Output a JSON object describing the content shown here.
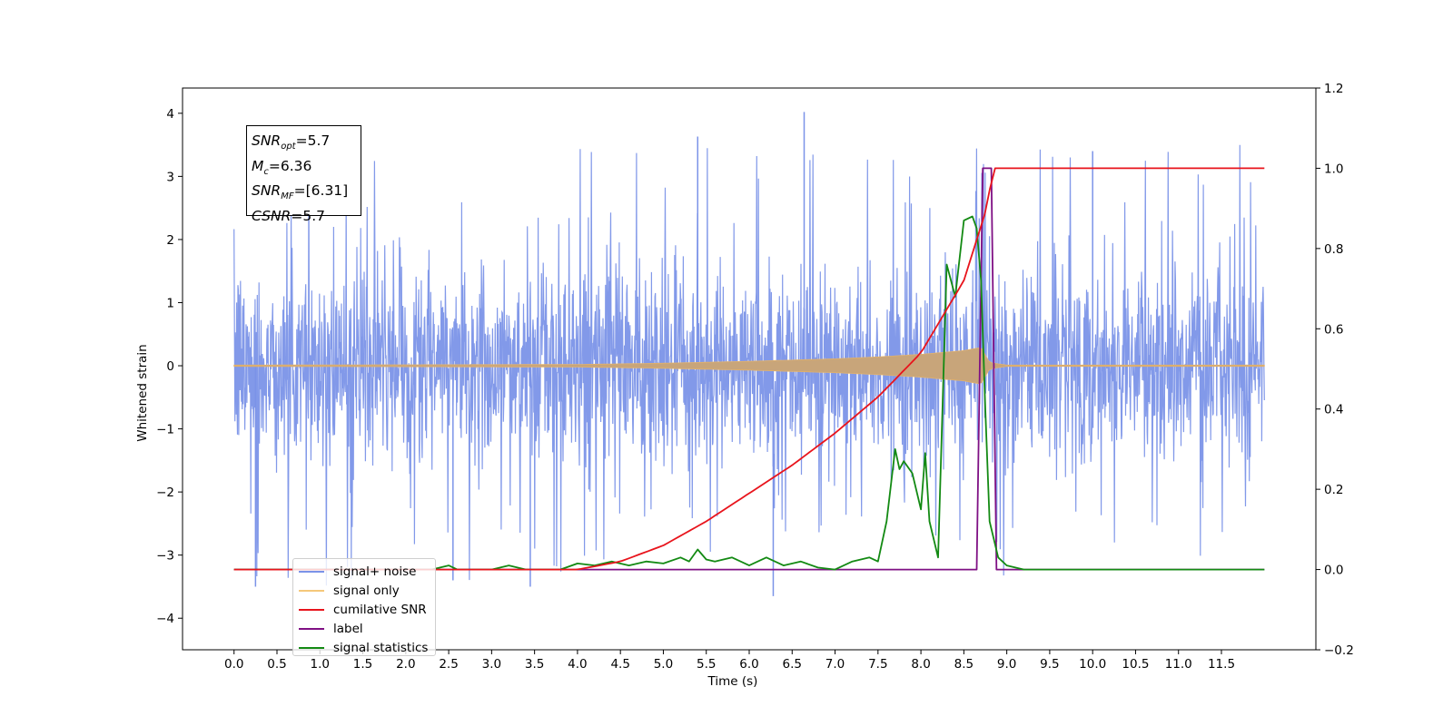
{
  "chart_data": {
    "type": "line",
    "xlabel": "Time (s)",
    "ylabel": "Whitened strain",
    "xlim": [
      -0.6,
      12.6
    ],
    "ylim": [
      -4.5,
      4.4
    ],
    "y2lim": [
      -0.2,
      1.2
    ],
    "xticks": [
      "0.0",
      "0.5",
      "1.0",
      "1.5",
      "2.0",
      "2.5",
      "3.0",
      "3.5",
      "4.0",
      "4.5",
      "5.0",
      "5.5",
      "6.0",
      "6.5",
      "7.0",
      "7.5",
      "8.0",
      "8.5",
      "9.0",
      "9.5",
      "10.0",
      "10.5",
      "11.0",
      "11.5"
    ],
    "yticks": [
      "4",
      "3",
      "2",
      "1",
      "0",
      "−1",
      "−2",
      "−3",
      "−4"
    ],
    "y2ticks": [
      "1.2",
      "1.0",
      "0.8",
      "0.6",
      "0.4",
      "0.2",
      "0.0",
      "−0.2"
    ],
    "legend_position": "lower-left",
    "annotation": {
      "snr_opt": "5.7",
      "mc": "6.36",
      "snr_mf": "[6.31]",
      "csnr": "5.7"
    },
    "series": [
      {
        "name": "signal+ noise",
        "color": "#7b93e8",
        "axis": "left",
        "description_values": {
          "x_range": [
            0.0,
            12.0
          ],
          "typical_band": [
            -2.0,
            2.0
          ],
          "spike_max": 4.02,
          "spike_min": -3.65
        }
      },
      {
        "name": "signal only",
        "color": "#c8a57a",
        "axis": "left",
        "envelope": {
          "x": [
            0.0,
            4.0,
            5.0,
            6.0,
            7.0,
            7.5,
            8.0,
            8.5,
            8.7,
            8.8,
            9.0,
            12.0
          ],
          "amp": [
            0.01,
            0.02,
            0.04,
            0.07,
            0.11,
            0.14,
            0.18,
            0.24,
            0.29,
            0.05,
            0.01,
            0.01
          ]
        }
      },
      {
        "name": "cumilative SNR",
        "color": "#e8141c",
        "axis": "right",
        "x": [
          0.0,
          4.0,
          4.5,
          5.0,
          5.5,
          6.0,
          6.5,
          7.0,
          7.5,
          8.0,
          8.5,
          8.75,
          8.85,
          9.0,
          12.0
        ],
        "y": [
          0.0,
          0.0,
          0.02,
          0.06,
          0.12,
          0.19,
          0.26,
          0.34,
          0.43,
          0.54,
          0.72,
          0.89,
          1.0,
          1.0,
          1.0
        ]
      },
      {
        "name": "label",
        "color": "#7f1084",
        "axis": "right",
        "x": [
          0.0,
          8.65,
          8.72,
          8.82,
          8.88,
          12.0
        ],
        "y": [
          0.0,
          0.0,
          1.0,
          1.0,
          0.0,
          0.0
        ]
      },
      {
        "name": "signal statistics",
        "color": "#138a13",
        "axis": "right",
        "x": [
          0.0,
          2.3,
          2.5,
          2.6,
          2.8,
          3.0,
          3.2,
          3.4,
          3.6,
          3.8,
          4.0,
          4.2,
          4.4,
          4.6,
          4.8,
          5.0,
          5.2,
          5.3,
          5.4,
          5.5,
          5.6,
          5.8,
          6.0,
          6.2,
          6.4,
          6.6,
          6.8,
          7.0,
          7.2,
          7.4,
          7.5,
          7.6,
          7.7,
          7.75,
          7.8,
          7.9,
          8.0,
          8.05,
          8.1,
          8.2,
          8.3,
          8.4,
          8.5,
          8.6,
          8.65,
          8.7,
          8.75,
          8.8,
          8.9,
          9.0,
          9.2,
          12.0
        ],
        "y": [
          0.0,
          0.0,
          0.01,
          0.0,
          0.0,
          0.0,
          0.01,
          0.0,
          0.0,
          0.0,
          0.015,
          0.01,
          0.02,
          0.01,
          0.02,
          0.015,
          0.03,
          0.02,
          0.05,
          0.025,
          0.02,
          0.03,
          0.01,
          0.03,
          0.01,
          0.02,
          0.005,
          0.0,
          0.02,
          0.03,
          0.02,
          0.12,
          0.3,
          0.25,
          0.27,
          0.24,
          0.15,
          0.29,
          0.12,
          0.03,
          0.76,
          0.68,
          0.87,
          0.88,
          0.85,
          0.72,
          0.4,
          0.12,
          0.03,
          0.01,
          0.0,
          0.0
        ]
      }
    ]
  }
}
